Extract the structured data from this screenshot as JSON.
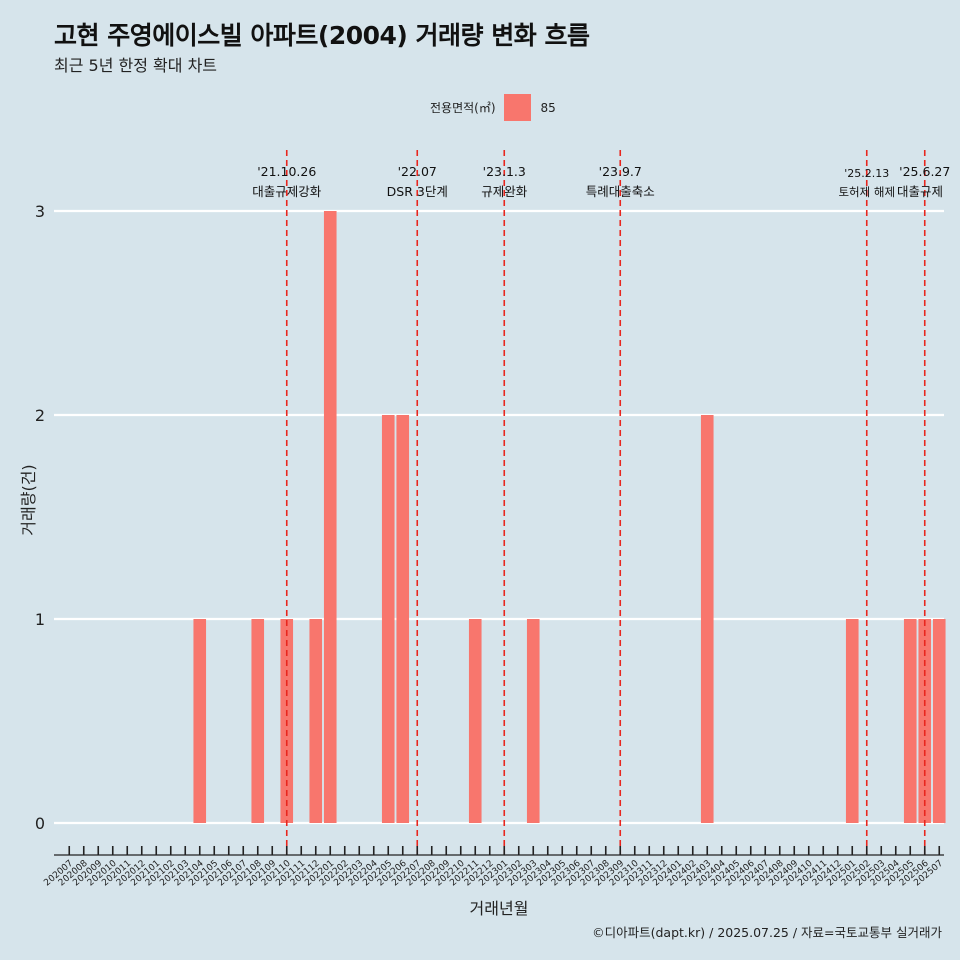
{
  "title": "고현 주영에이스빌 아파트(2004) 거래량 변화 흐름",
  "subtitle": "최근 5년 한정 확대 차트",
  "legend": {
    "title": "전용면적(㎡)",
    "label": "85"
  },
  "caption": "©디아파트(dapt.kr) / 2025.07.25 / 자료=국토교통부 실거래가",
  "colors": {
    "bar": "#f8766d",
    "vline": "#e8261e",
    "background": "#d6e4eb",
    "grid": "#ffffff"
  },
  "chart_data": {
    "type": "bar",
    "xlabel": "거래년월",
    "ylabel": "거래량(건)",
    "ylim": [
      0,
      3
    ],
    "yticks": [
      0,
      1,
      2,
      3
    ],
    "grid": true,
    "legend_position": "top",
    "categories": [
      "202007",
      "202008",
      "202009",
      "202010",
      "202011",
      "202012",
      "202101",
      "202102",
      "202103",
      "202104",
      "202105",
      "202106",
      "202107",
      "202108",
      "202109",
      "202110",
      "202111",
      "202112",
      "202201",
      "202202",
      "202203",
      "202204",
      "202205",
      "202206",
      "202207",
      "202208",
      "202209",
      "202210",
      "202211",
      "202212",
      "202301",
      "202302",
      "202303",
      "202304",
      "202305",
      "202306",
      "202307",
      "202308",
      "202309",
      "202310",
      "202311",
      "202312",
      "202401",
      "202402",
      "202403",
      "202404",
      "202405",
      "202406",
      "202407",
      "202408",
      "202409",
      "202410",
      "202411",
      "202412",
      "202501",
      "202502",
      "202503",
      "202504",
      "202505",
      "202506",
      "202507"
    ],
    "series": [
      {
        "name": "85",
        "values": [
          0,
          0,
          0,
          0,
          0,
          0,
          0,
          0,
          0,
          1,
          0,
          0,
          0,
          1,
          0,
          1,
          0,
          1,
          3,
          0,
          0,
          0,
          2,
          2,
          0,
          0,
          0,
          0,
          1,
          0,
          0,
          0,
          1,
          0,
          0,
          0,
          0,
          0,
          0,
          0,
          0,
          0,
          0,
          0,
          2,
          0,
          0,
          0,
          0,
          0,
          0,
          0,
          0,
          0,
          1,
          0,
          0,
          0,
          1,
          1,
          1
        ]
      }
    ],
    "annotations": [
      {
        "category": "202110",
        "date": "'21.10.26",
        "label": "대출규제강화"
      },
      {
        "category": "202207",
        "date": "'22.07",
        "label": "DSR 3단계"
      },
      {
        "category": "202301",
        "date": "'23.1.3",
        "label": "규제완화"
      },
      {
        "category": "202309",
        "date": "'23.9.7",
        "label": "특례대출축소"
      },
      {
        "category": "202502",
        "date": "'25.2.13",
        "label": "토허제 해제"
      },
      {
        "category": "202506",
        "date": "'25.6.27",
        "label": "대출규제"
      }
    ]
  }
}
